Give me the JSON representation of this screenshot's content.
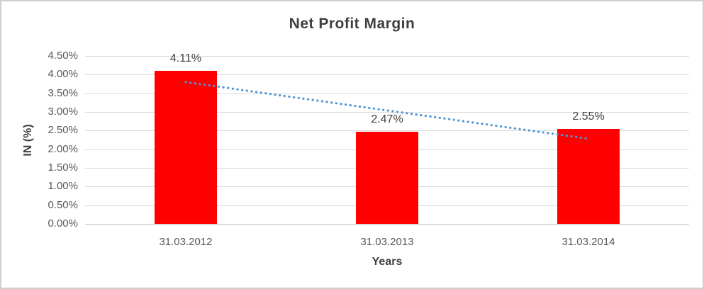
{
  "chart_data": {
    "type": "bar",
    "title": "Net Profit Margin",
    "xlabel": "Years",
    "ylabel": "IN (%)",
    "categories": [
      "31.03.2012",
      "31.03.2013",
      "31.03.2014"
    ],
    "values": [
      4.11,
      2.47,
      2.55
    ],
    "data_labels": [
      "4.11%",
      "2.47%",
      "2.55%"
    ],
    "ytick_labels": [
      "4.50%",
      "4.00%",
      "3.50%",
      "3.00%",
      "2.50%",
      "2.00%",
      "1.50%",
      "1.00%",
      "0.50%",
      "0.00%"
    ],
    "ylim": [
      0,
      4.5
    ],
    "grid": true,
    "legend": false,
    "bar_color": "#ff0000",
    "trendline": {
      "type": "linear",
      "style": "dotted",
      "color": "#4f96d2",
      "start_value": 3.8,
      "end_value": 2.28
    }
  },
  "colors": {
    "bar": "#ff0000",
    "trendline": "#4f96d2",
    "gridline": "#d9d9d9",
    "axis_line": "#bfbfbf",
    "title_text": "#3f3f3f",
    "tick_text": "#595959",
    "frame_border": "#cfcfcf"
  }
}
